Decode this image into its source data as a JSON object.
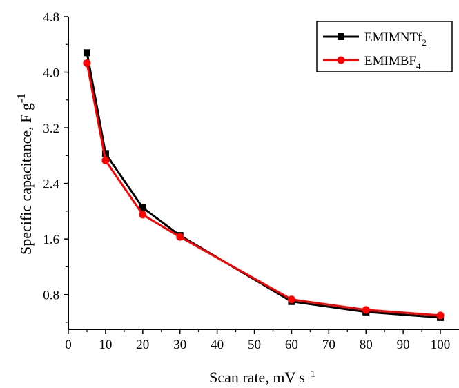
{
  "chart_data": {
    "type": "line",
    "xlabel": "Scan rate, mV s",
    "xlabel_sup": "−1",
    "ylabel": "Specific capacitance, F g",
    "ylabel_sup": "-1",
    "xlim": [
      0,
      105
    ],
    "ylim": [
      0.3,
      4.8
    ],
    "xticks": [
      0,
      10,
      20,
      30,
      40,
      50,
      60,
      70,
      80,
      90,
      100
    ],
    "yticks": [
      0.8,
      1.6,
      2.4,
      3.2,
      4.0,
      4.8
    ],
    "ytick_labels": [
      "0.8",
      "1.6",
      "2.4",
      "3.2",
      "4.0",
      "4.8"
    ],
    "grid": false,
    "legend_position": "top-right",
    "series": [
      {
        "name": "EMIMNTf",
        "name_sub": "2",
        "color": "#000000",
        "marker": "square",
        "x": [
          5,
          10,
          20,
          30,
          60,
          80,
          100
        ],
        "y": [
          4.28,
          2.83,
          2.05,
          1.65,
          0.7,
          0.55,
          0.47
        ]
      },
      {
        "name": "EMIMBF",
        "name_sub": "4",
        "color": "#ff0000",
        "marker": "circle",
        "x": [
          5,
          10,
          20,
          30,
          60,
          80,
          100
        ],
        "y": [
          4.13,
          2.73,
          1.95,
          1.63,
          0.73,
          0.58,
          0.5
        ]
      }
    ]
  }
}
